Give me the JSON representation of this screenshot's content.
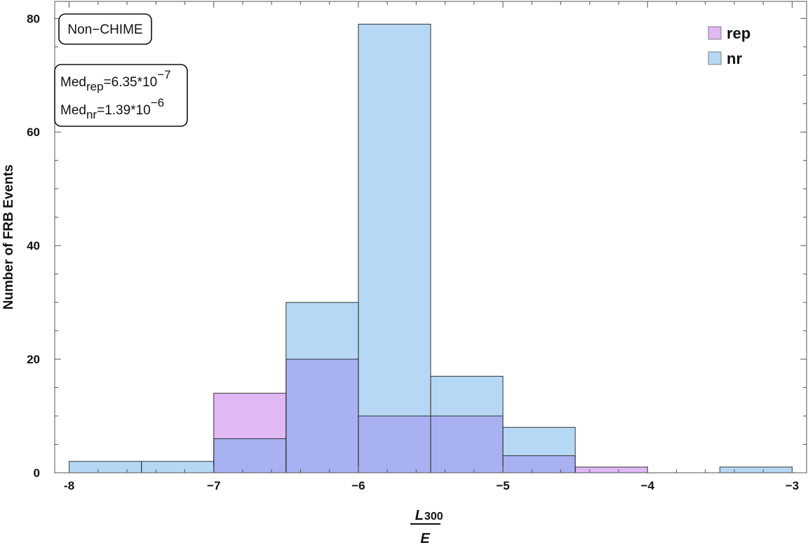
{
  "chart_data": {
    "type": "bar",
    "subtype": "overlapping-histogram",
    "title": "",
    "xlabel": {
      "numerator": "L",
      "numerator_sub": "300",
      "denominator": "E"
    },
    "ylabel": "Number of FRB Events",
    "xlim": [
      -8.1,
      -2.9
    ],
    "ylim": [
      0,
      83
    ],
    "bin_edges": [
      -8,
      -7.5,
      -7,
      -6.5,
      -6,
      -5.5,
      -5,
      -4.5,
      -4,
      -3.5,
      -3
    ],
    "x_ticks": [
      -8,
      -7,
      -6,
      -5,
      -4,
      -3
    ],
    "x_tick_labels": [
      "-8",
      "−7",
      "−6",
      "−5",
      "−4",
      "−3"
    ],
    "y_ticks": [
      0,
      20,
      40,
      60,
      80
    ],
    "y_tick_labels": [
      "0",
      "20",
      "40",
      "60",
      "80"
    ],
    "series": [
      {
        "name": "rep",
        "color": "#e0b8f4",
        "values": [
          0,
          0,
          14,
          20,
          10,
          10,
          3,
          1,
          0,
          0
        ]
      },
      {
        "name": "nr",
        "color": "#b6d8f4",
        "values": [
          2,
          2,
          6,
          30,
          79,
          17,
          8,
          0,
          0,
          1
        ]
      }
    ],
    "overlap_color": "#a8b2f2",
    "legend": {
      "position": "top-right",
      "items": [
        "rep",
        "nr"
      ]
    },
    "annotations": {
      "sample_label": "Non−CHIME",
      "median_rep": {
        "label": "Med",
        "sub": "rep",
        "value": "=6.35*10",
        "exponent": "−7"
      },
      "median_nr": {
        "label": "Med",
        "sub": "nr",
        "value": "=1.39*10",
        "exponent": "−6"
      }
    },
    "grid": false
  }
}
